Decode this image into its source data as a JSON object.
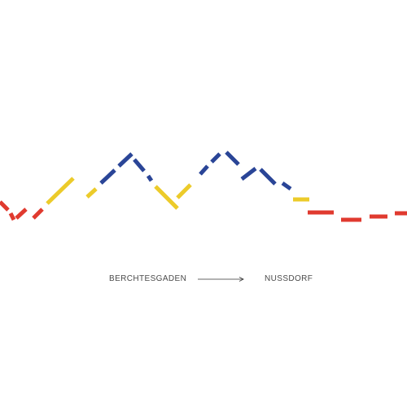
{
  "route": {
    "start": "BERCHTESGADEN",
    "end": "NUSSDORF"
  },
  "colors": {
    "low": "#e03a2f",
    "mid": "#eccb2a",
    "high": "#2a4597",
    "text": "#4a4a4a",
    "arrow": "#333333"
  },
  "legend_icons": [
    "arrow-right-icon"
  ]
}
